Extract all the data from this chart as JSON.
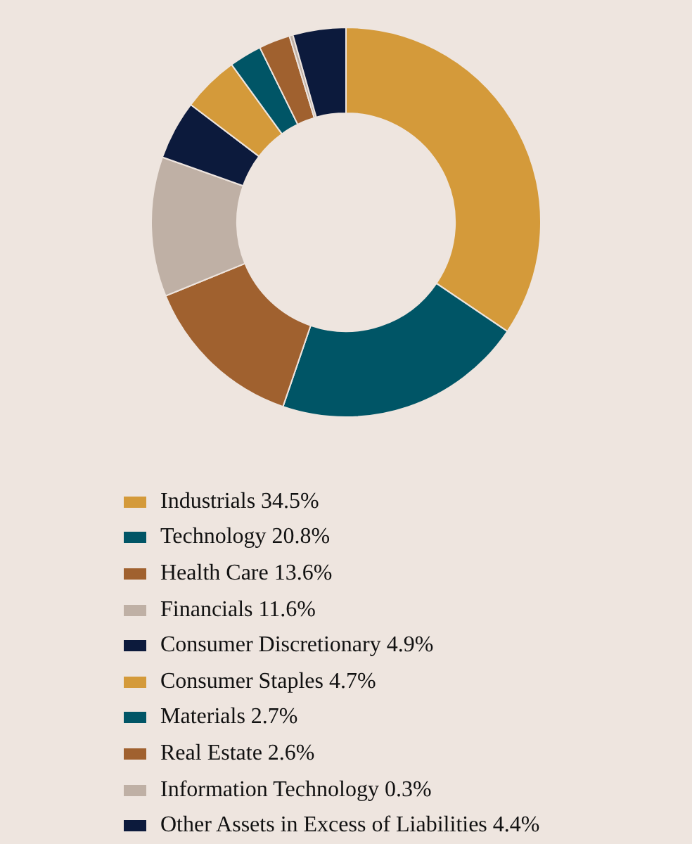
{
  "chart_data": {
    "type": "donut",
    "legend": "bottom",
    "categories": [
      "Industrials 34.5%",
      "Technology 20.8%",
      "Health Care 13.6%",
      "Financials 11.6%",
      "Consumer Discretionary 4.9%",
      "Consumer Staples 4.7%",
      "Materials 2.7%",
      "Real Estate 2.6%",
      "Information Technology 0.3%",
      "Other Assets in Excess of Liabilities 4.4%"
    ],
    "values": [
      34.5,
      20.8,
      13.6,
      11.6,
      4.9,
      4.7,
      2.7,
      2.6,
      0.3,
      4.4
    ],
    "colors": [
      "#d49a3a",
      "#005566",
      "#a0612f",
      "#bfb0a5",
      "#0c1a3c",
      "#d49a3a",
      "#005566",
      "#a0612f",
      "#bfb0a5",
      "#0c1a3c"
    ]
  }
}
